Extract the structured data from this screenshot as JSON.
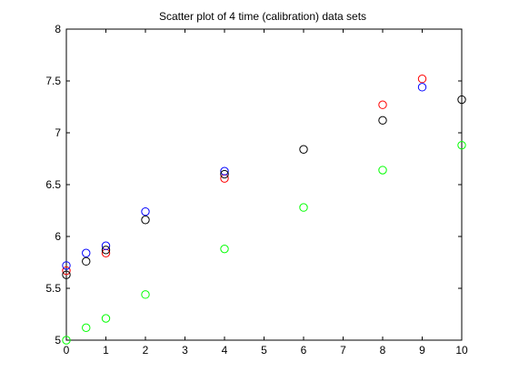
{
  "chart_data": {
    "type": "scatter",
    "title": "Scatter plot of 4 time (calibration) data sets",
    "xlabel": "",
    "ylabel": "",
    "xlim": [
      0,
      10
    ],
    "ylim": [
      5,
      8
    ],
    "x_ticks": [
      "0",
      "1",
      "2",
      "3",
      "4",
      "5",
      "6",
      "7",
      "8",
      "9",
      "10"
    ],
    "y_ticks": [
      "5",
      "5.5",
      "6",
      "6.5",
      "7",
      "7.5",
      "8"
    ],
    "grid": false,
    "legend": "none",
    "marker": "open-circle",
    "series": [
      {
        "color": "#ff0000",
        "x": [
          0,
          1,
          4,
          8,
          9
        ],
        "y": [
          5.67,
          5.84,
          6.56,
          7.27,
          7.52
        ]
      },
      {
        "color": "#0000ff",
        "x": [
          0,
          0.5,
          1,
          2,
          4,
          9
        ],
        "y": [
          5.72,
          5.84,
          5.91,
          6.24,
          6.63,
          7.44
        ]
      },
      {
        "color": "#000000",
        "x": [
          0,
          0.5,
          1,
          2,
          4,
          6,
          8,
          10
        ],
        "y": [
          5.63,
          5.76,
          5.87,
          6.16,
          6.6,
          6.84,
          7.12,
          7.32
        ]
      },
      {
        "color": "#00ff00",
        "x": [
          0,
          0.5,
          1,
          2,
          4,
          6,
          8,
          10
        ],
        "y": [
          5.0,
          5.12,
          5.21,
          5.44,
          5.88,
          6.28,
          6.64,
          6.88
        ]
      }
    ]
  }
}
